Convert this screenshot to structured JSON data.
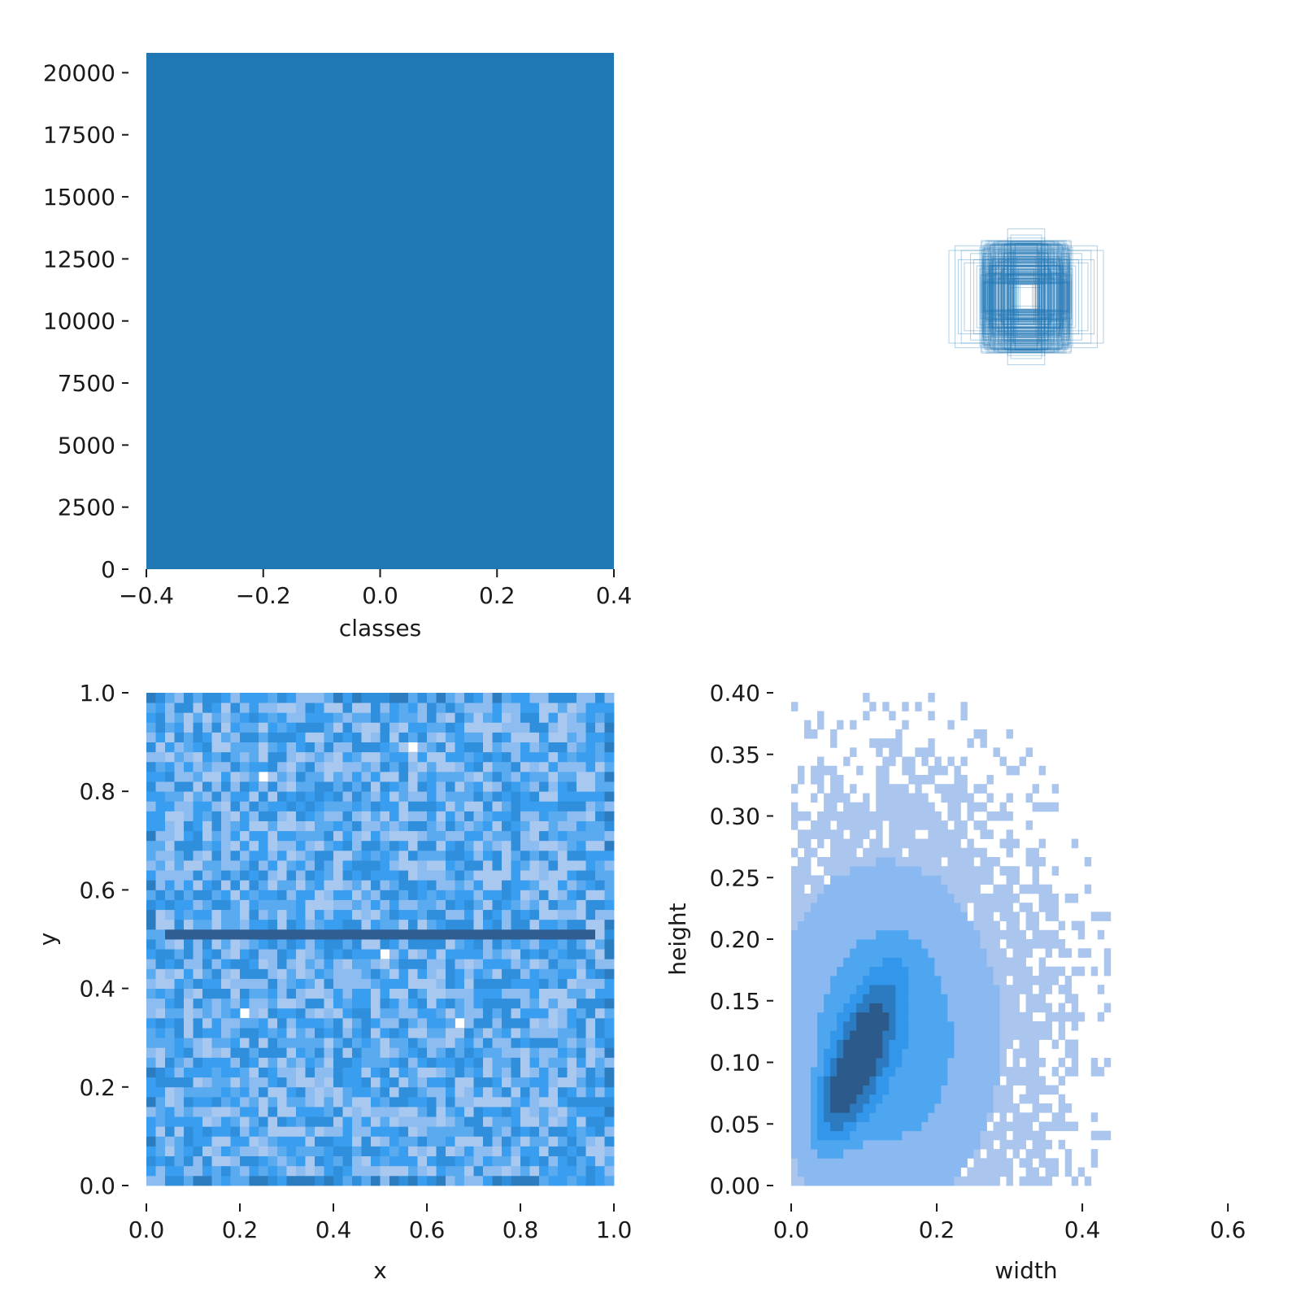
{
  "chart_data": [
    {
      "panel": "classes",
      "type": "bar",
      "categories": [
        "0"
      ],
      "x": [
        0.0
      ],
      "values": [
        20800
      ],
      "bar_width": 0.8,
      "xlabel": "classes",
      "ylabel": "",
      "xlim": [
        -0.4,
        0.4
      ],
      "ylim": [
        0,
        20800
      ],
      "xticks": [
        -0.4,
        -0.2,
        0.0,
        0.2,
        0.4
      ],
      "xtick_labels": [
        "−0.4",
        "−0.2",
        "0.0",
        "0.2",
        "0.4"
      ],
      "yticks": [
        0,
        2500,
        5000,
        7500,
        10000,
        12500,
        15000,
        17500,
        20000
      ],
      "ytick_labels": [
        "0",
        "2500",
        "5000",
        "7500",
        "10000",
        "12500",
        "15000",
        "17500",
        "20000"
      ],
      "color": "#1f77b4",
      "grid": false
    },
    {
      "panel": "boxes",
      "type": "scatter",
      "description_values": "centered box outlines, width and height in normalized units",
      "boxes": [
        [
          0.5,
          0.3
        ],
        [
          0.46,
          0.33
        ],
        [
          0.42,
          0.3
        ],
        [
          0.36,
          0.28
        ],
        [
          0.3,
          0.32
        ],
        [
          0.26,
          0.29
        ],
        [
          0.22,
          0.25
        ],
        [
          0.18,
          0.3
        ],
        [
          0.4,
          0.22
        ],
        [
          0.34,
          0.24
        ],
        [
          0.28,
          0.26
        ],
        [
          0.24,
          0.2
        ],
        [
          0.2,
          0.22
        ],
        [
          0.16,
          0.24
        ],
        [
          0.14,
          0.34
        ],
        [
          0.12,
          0.38
        ],
        [
          0.12,
          0.44
        ],
        [
          0.1,
          0.4
        ],
        [
          0.1,
          0.36
        ],
        [
          0.08,
          0.3
        ],
        [
          0.14,
          0.28
        ],
        [
          0.16,
          0.18
        ],
        [
          0.12,
          0.2
        ],
        [
          0.1,
          0.16
        ],
        [
          0.08,
          0.12
        ],
        [
          0.06,
          0.14
        ],
        [
          0.06,
          0.1
        ],
        [
          0.2,
          0.16
        ],
        [
          0.18,
          0.12
        ],
        [
          0.22,
          0.14
        ],
        [
          0.3,
          0.18
        ],
        [
          0.26,
          0.15
        ],
        [
          0.14,
          0.1
        ],
        [
          0.12,
          0.08
        ],
        [
          0.1,
          0.06
        ],
        [
          0.16,
          0.3
        ],
        [
          0.18,
          0.36
        ],
        [
          0.2,
          0.34
        ],
        [
          0.24,
          0.32
        ],
        [
          0.08,
          0.22
        ],
        [
          0.06,
          0.26
        ],
        [
          0.04,
          0.08
        ],
        [
          0.05,
          0.18
        ],
        [
          0.32,
          0.2
        ],
        [
          0.44,
          0.24
        ]
      ],
      "color": "#1f77b4",
      "grid": false
    },
    {
      "panel": "xy",
      "type": "heatmap",
      "xlabel": "x",
      "ylabel": "y",
      "xlim": [
        0.0,
        1.0
      ],
      "ylim": [
        0.0,
        1.0
      ],
      "bins": 50,
      "xticks": [
        0.0,
        0.2,
        0.4,
        0.6,
        0.8,
        1.0
      ],
      "xtick_labels": [
        "0.0",
        "0.2",
        "0.4",
        "0.6",
        "0.8",
        "1.0"
      ],
      "yticks": [
        0.0,
        0.2,
        0.4,
        0.6,
        0.8,
        1.0
      ],
      "ytick_labels": [
        "0.0",
        "0.2",
        "0.4",
        "0.6",
        "0.8",
        "1.0"
      ],
      "dense_row_y": 0.51,
      "empty_cells": [
        [
          0.57,
          0.89
        ],
        [
          0.25,
          0.83
        ],
        [
          0.51,
          0.47
        ],
        [
          0.21,
          0.35
        ],
        [
          0.67,
          0.33
        ]
      ],
      "colors": [
        "#a9c8f0",
        "#8cbcf0",
        "#5aaaf0",
        "#3a9ef0",
        "#2f8fdc",
        "#2c7cc0",
        "#2e5e92"
      ],
      "grid": false
    },
    {
      "panel": "wh",
      "type": "heatmap",
      "xlabel": "width",
      "ylabel": "height",
      "xlim": [
        0.0,
        0.62
      ],
      "ylim": [
        0.0,
        0.4
      ],
      "xticks": [
        0.0,
        0.2,
        0.4,
        0.6
      ],
      "xtick_labels": [
        "0.0",
        "0.2",
        "0.4",
        "0.6"
      ],
      "yticks": [
        0.0,
        0.05,
        0.1,
        0.15,
        0.2,
        0.25,
        0.3,
        0.35,
        0.4
      ],
      "ytick_labels": [
        "0.00",
        "0.05",
        "0.10",
        "0.15",
        "0.20",
        "0.25",
        "0.30",
        "0.35",
        "0.40"
      ],
      "peak": [
        0.09,
        0.1
      ],
      "colors": [
        "#aac6ee",
        "#8ab8f0",
        "#4ea6f0",
        "#3296ea",
        "#2c7ac0",
        "#2c5a8a"
      ],
      "grid": false
    }
  ]
}
